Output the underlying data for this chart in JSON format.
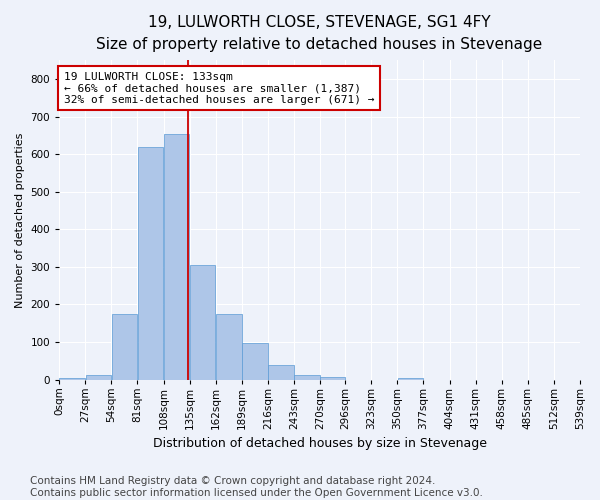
{
  "title": "19, LULWORTH CLOSE, STEVENAGE, SG1 4FY",
  "subtitle": "Size of property relative to detached houses in Stevenage",
  "xlabel": "Distribution of detached houses by size in Stevenage",
  "ylabel": "Number of detached properties",
  "bin_edges": [
    0,
    27,
    54,
    81,
    108,
    135,
    162,
    189,
    216,
    243,
    270,
    296,
    323,
    350,
    377,
    404,
    431,
    458,
    485,
    512,
    539
  ],
  "bar_heights": [
    5,
    13,
    175,
    620,
    655,
    305,
    175,
    97,
    38,
    13,
    8,
    0,
    0,
    5,
    0,
    0,
    0,
    0,
    0,
    0
  ],
  "bar_color": "#aec6e8",
  "bar_edge_color": "#5b9bd5",
  "property_line_x": 133,
  "property_line_color": "#cc0000",
  "annotation_text": "19 LULWORTH CLOSE: 133sqm\n← 66% of detached houses are smaller (1,387)\n32% of semi-detached houses are larger (671) →",
  "annotation_box_color": "#ffffff",
  "annotation_box_edge_color": "#cc0000",
  "ylim": [
    0,
    850
  ],
  "yticks": [
    0,
    100,
    200,
    300,
    400,
    500,
    600,
    700,
    800
  ],
  "footer_text": "Contains HM Land Registry data © Crown copyright and database right 2024.\nContains public sector information licensed under the Open Government Licence v3.0.",
  "background_color": "#eef2fa",
  "plot_bg_color": "#eef2fa",
  "grid_color": "#ffffff",
  "title_fontsize": 11,
  "subtitle_fontsize": 9.5,
  "tick_label_fontsize": 7.5,
  "xlabel_fontsize": 9,
  "ylabel_fontsize": 8,
  "annotation_fontsize": 8,
  "footer_fontsize": 7.5
}
